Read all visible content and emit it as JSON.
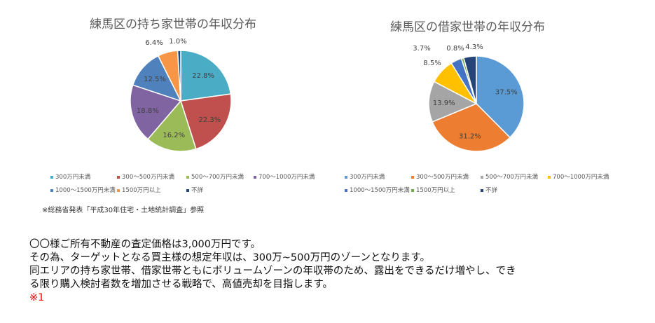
{
  "chart_data": [
    {
      "type": "pie",
      "title": "練馬区の持ち家世帯の年収分布",
      "categories": [
        "300万円未満",
        "300～500万円未満",
        "500～700万円未満",
        "700～1000万円未満",
        "1000～1500万円未満",
        "1500万円以上",
        "不詳"
      ],
      "values": [
        22.8,
        22.3,
        16.2,
        18.8,
        12.5,
        6.4,
        1.0
      ],
      "labels": [
        "22.8%",
        "22.3%",
        "16.2%",
        "18.8%",
        "12.5%",
        "6.4%",
        "1.0%"
      ],
      "colors": [
        "#4bacc6",
        "#c0504d",
        "#9bbb59",
        "#8064a2",
        "#4f81bd",
        "#f79646",
        "#1f497d"
      ],
      "legend": "bottom"
    },
    {
      "type": "pie",
      "title": "練馬区の借家世帯の年収分布",
      "categories": [
        "300万円未満",
        "300～500万円未満",
        "500～700万円未満",
        "700～1000万円未満",
        "1000～1500万円未満",
        "1500万円以上",
        "不詳"
      ],
      "values": [
        37.5,
        31.2,
        13.9,
        8.5,
        3.7,
        0.8,
        4.3
      ],
      "labels": [
        "37.5%",
        "31.2%",
        "13.9%",
        "8.5%",
        "3.7%",
        "0.8%",
        "4.3%"
      ],
      "colors": [
        "#5b9bd5",
        "#ed7d31",
        "#a5a5a5",
        "#ffc000",
        "#4472c4",
        "#70ad47",
        "#264478"
      ],
      "legend": "bottom"
    }
  ],
  "source_note": "※総務省発表「平成30年住宅・土地統計調査」参照",
  "body": {
    "lines": [
      "〇〇様ご所有不動産の査定価格は3,000万円です。",
      "その為、ターゲットとなる買主様の想定年収は、300万~500万円のゾーンとなります。",
      "同エリアの持ち家世帯、借家世帯ともにボリュームゾーンの年収帯のため、露出をできるだけ増やし、でき",
      "る限り購入検討者数を増加させる戦略で、高値売却を目指します。"
    ],
    "note": "※1"
  }
}
